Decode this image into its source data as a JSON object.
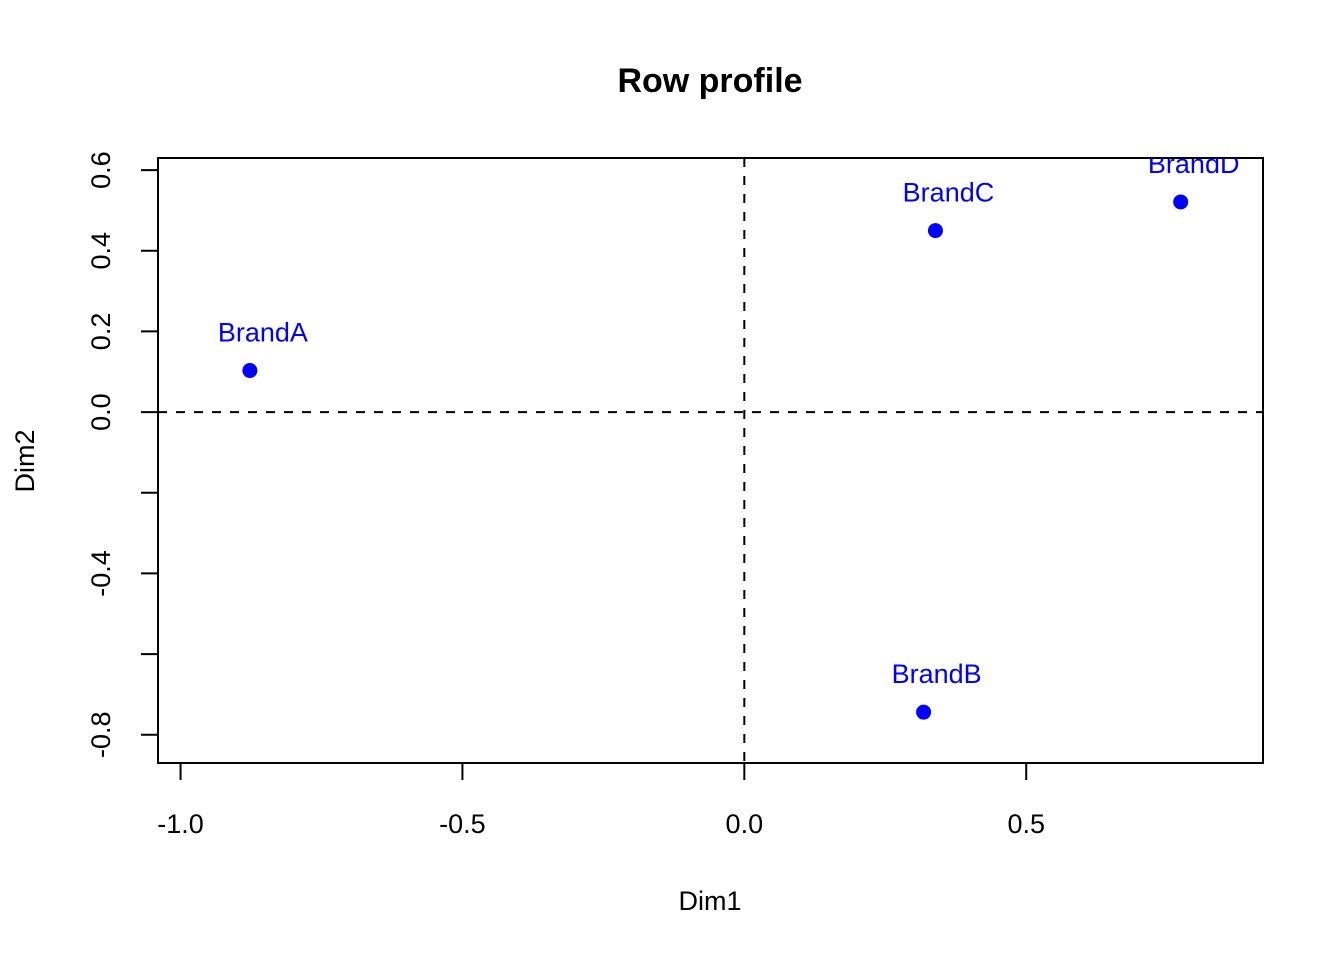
{
  "chart_data": {
    "type": "scatter",
    "title": "Row profile",
    "xlabel": "Dim1",
    "ylabel": "Dim2",
    "xlim": [
      -1.04,
      0.92
    ],
    "ylim": [
      -0.87,
      0.63
    ],
    "xticks": [
      -1.0,
      -0.5,
      0.0,
      0.5
    ],
    "xtick_labels": [
      "-1.0",
      "-0.5",
      "0.0",
      "0.5"
    ],
    "yticks": [
      -0.8,
      -0.6,
      -0.4,
      -0.2,
      0.0,
      0.2,
      0.4,
      0.6
    ],
    "ytick_labels": [
      "-0.8",
      "",
      "-0.4",
      "",
      "0.0",
      "0.2",
      "0.4",
      "0.6"
    ],
    "grid": false,
    "reference_lines": {
      "x": 0,
      "y": 0,
      "style": "dashed"
    },
    "point_color": "#0000ff",
    "label_color": "#0000ff",
    "points": [
      {
        "label": "BrandA",
        "x": -0.877,
        "y": 0.103
      },
      {
        "label": "BrandB",
        "x": 0.318,
        "y": -0.744
      },
      {
        "label": "BrandC",
        "x": 0.339,
        "y": 0.45
      },
      {
        "label": "BrandD",
        "x": 0.774,
        "y": 0.521
      }
    ]
  }
}
